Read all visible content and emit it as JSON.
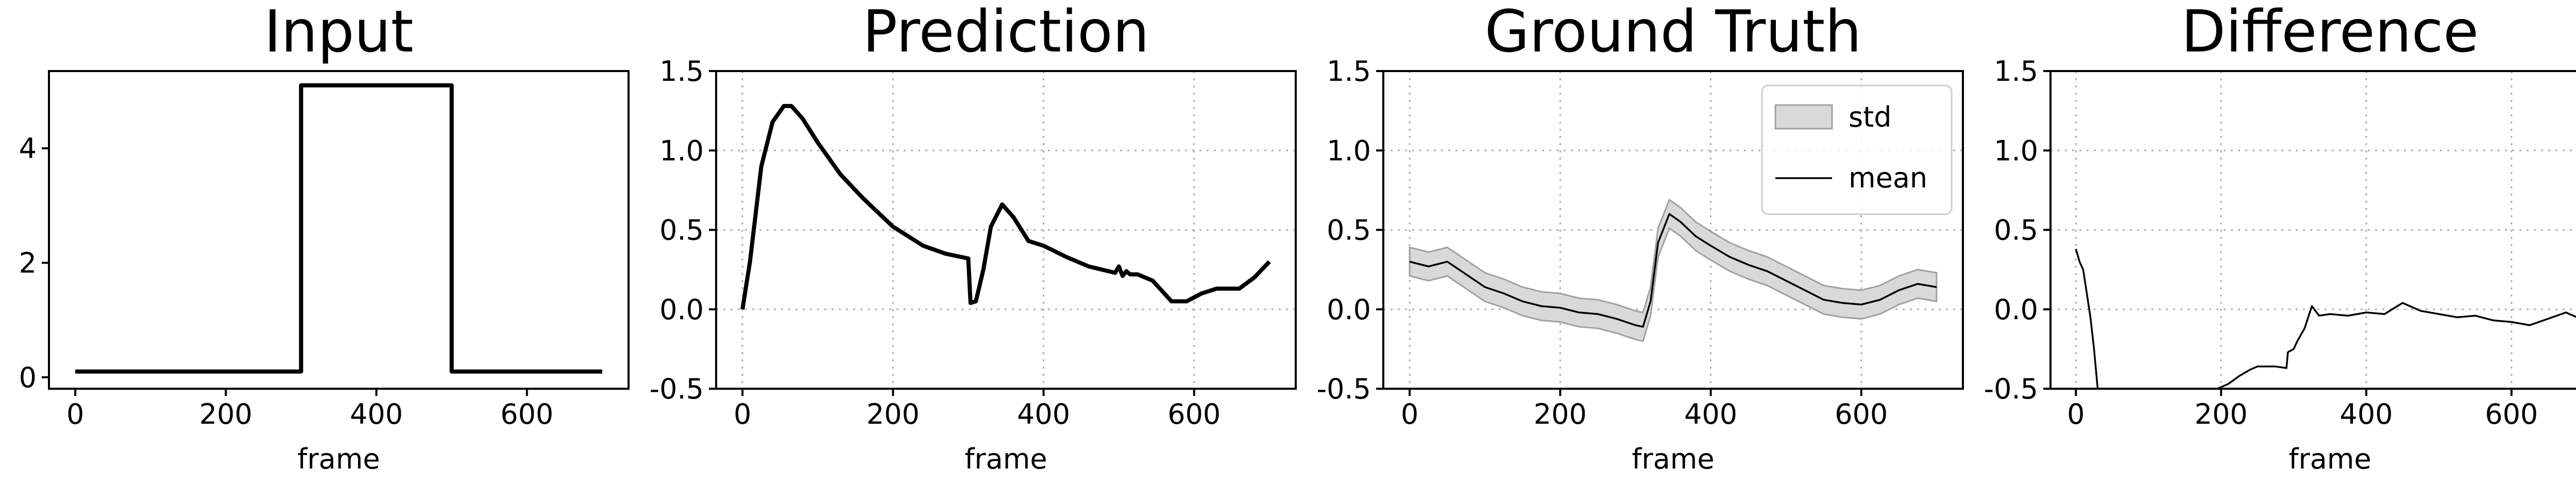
{
  "chart_data": [
    {
      "type": "line",
      "title": "Input",
      "xlabel": "frame",
      "ylabel": "",
      "xlim": [
        -35,
        735
      ],
      "ylim": [
        -0.2,
        5.35
      ],
      "xticks": [
        0,
        200,
        400,
        600
      ],
      "yticks": [
        0,
        2,
        4
      ],
      "grid": false,
      "series": [
        {
          "x": [
            0,
            300,
            300,
            500,
            500,
            700
          ],
          "y": [
            0.1,
            0.1,
            5.1,
            5.1,
            0.1,
            0.1
          ],
          "color": "#000000"
        }
      ]
    },
    {
      "type": "line",
      "title": "Prediction",
      "xlabel": "frame",
      "ylabel": "",
      "xlim": [
        -35,
        735
      ],
      "ylim": [
        -0.5,
        1.5
      ],
      "xticks": [
        0,
        200,
        400,
        600
      ],
      "yticks": [
        -0.5,
        0.0,
        0.5,
        1.0,
        1.5
      ],
      "grid": true,
      "series": [
        {
          "x": [
            0,
            10,
            25,
            40,
            55,
            65,
            80,
            100,
            130,
            160,
            200,
            240,
            270,
            300,
            303,
            310,
            320,
            330,
            345,
            360,
            380,
            400,
            430,
            460,
            495,
            500,
            505,
            510,
            515,
            525,
            545,
            570,
            590,
            610,
            630,
            660,
            680,
            700
          ],
          "y": [
            0.0,
            0.3,
            0.9,
            1.18,
            1.28,
            1.28,
            1.2,
            1.05,
            0.85,
            0.7,
            0.52,
            0.4,
            0.35,
            0.32,
            0.04,
            0.05,
            0.25,
            0.52,
            0.66,
            0.58,
            0.43,
            0.4,
            0.33,
            0.27,
            0.23,
            0.27,
            0.21,
            0.24,
            0.22,
            0.22,
            0.18,
            0.05,
            0.05,
            0.1,
            0.13,
            0.13,
            0.2,
            0.3
          ],
          "color": "#000000"
        }
      ]
    },
    {
      "type": "area",
      "title": "Ground Truth",
      "xlabel": "frame",
      "ylabel": "",
      "xlim": [
        -35,
        735
      ],
      "ylim": [
        -0.5,
        1.5
      ],
      "xticks": [
        0,
        200,
        400,
        600
      ],
      "yticks": [
        -0.5,
        0.0,
        0.5,
        1.0,
        1.5
      ],
      "grid": true,
      "legend": "top-right",
      "series": [
        {
          "name": "mean",
          "x": [
            0,
            25,
            50,
            75,
            100,
            125,
            150,
            175,
            200,
            225,
            250,
            275,
            300,
            310,
            320,
            330,
            345,
            360,
            380,
            400,
            425,
            450,
            475,
            500,
            525,
            550,
            575,
            600,
            625,
            650,
            675,
            700
          ],
          "y": [
            0.3,
            0.27,
            0.3,
            0.22,
            0.14,
            0.1,
            0.05,
            0.02,
            0.01,
            -0.02,
            -0.03,
            -0.06,
            -0.1,
            -0.11,
            0.05,
            0.42,
            0.6,
            0.55,
            0.46,
            0.4,
            0.33,
            0.28,
            0.24,
            0.18,
            0.12,
            0.06,
            0.04,
            0.03,
            0.06,
            0.12,
            0.16,
            0.14
          ],
          "color": "#000000"
        },
        {
          "name": "std",
          "band": 0.09,
          "color": "#d9d9d9"
        }
      ]
    },
    {
      "type": "line",
      "title": "Difference",
      "xlabel": "frame",
      "ylabel": "",
      "xlim": [
        -35,
        735
      ],
      "ylim": [
        -0.5,
        1.5
      ],
      "xticks": [
        0,
        200,
        400,
        600
      ],
      "yticks": [
        -0.5,
        0.0,
        0.5,
        1.0,
        1.5
      ],
      "grid": true,
      "series": [
        {
          "x": [
            0,
            5,
            10,
            15,
            20,
            25,
            30
          ],
          "y": [
            0.38,
            0.3,
            0.25,
            0.1,
            -0.05,
            -0.25,
            -0.5
          ],
          "color": "#000000"
        },
        {
          "x": [
            195,
            210,
            225,
            240,
            250,
            260,
            275,
            290,
            292,
            300,
            305,
            315,
            325,
            335,
            350,
            375,
            400,
            425,
            450,
            475,
            500,
            525,
            550,
            575,
            600,
            625,
            650,
            675,
            690,
            700
          ],
          "y": [
            -0.5,
            -0.47,
            -0.42,
            -0.38,
            -0.36,
            -0.36,
            -0.36,
            -0.37,
            -0.27,
            -0.25,
            -0.2,
            -0.12,
            0.02,
            -0.04,
            -0.03,
            -0.04,
            -0.02,
            -0.03,
            0.04,
            -0.01,
            -0.03,
            -0.05,
            -0.04,
            -0.07,
            -0.08,
            -0.1,
            -0.06,
            -0.02,
            -0.05,
            -0.14
          ],
          "color": "#000000"
        }
      ]
    }
  ]
}
